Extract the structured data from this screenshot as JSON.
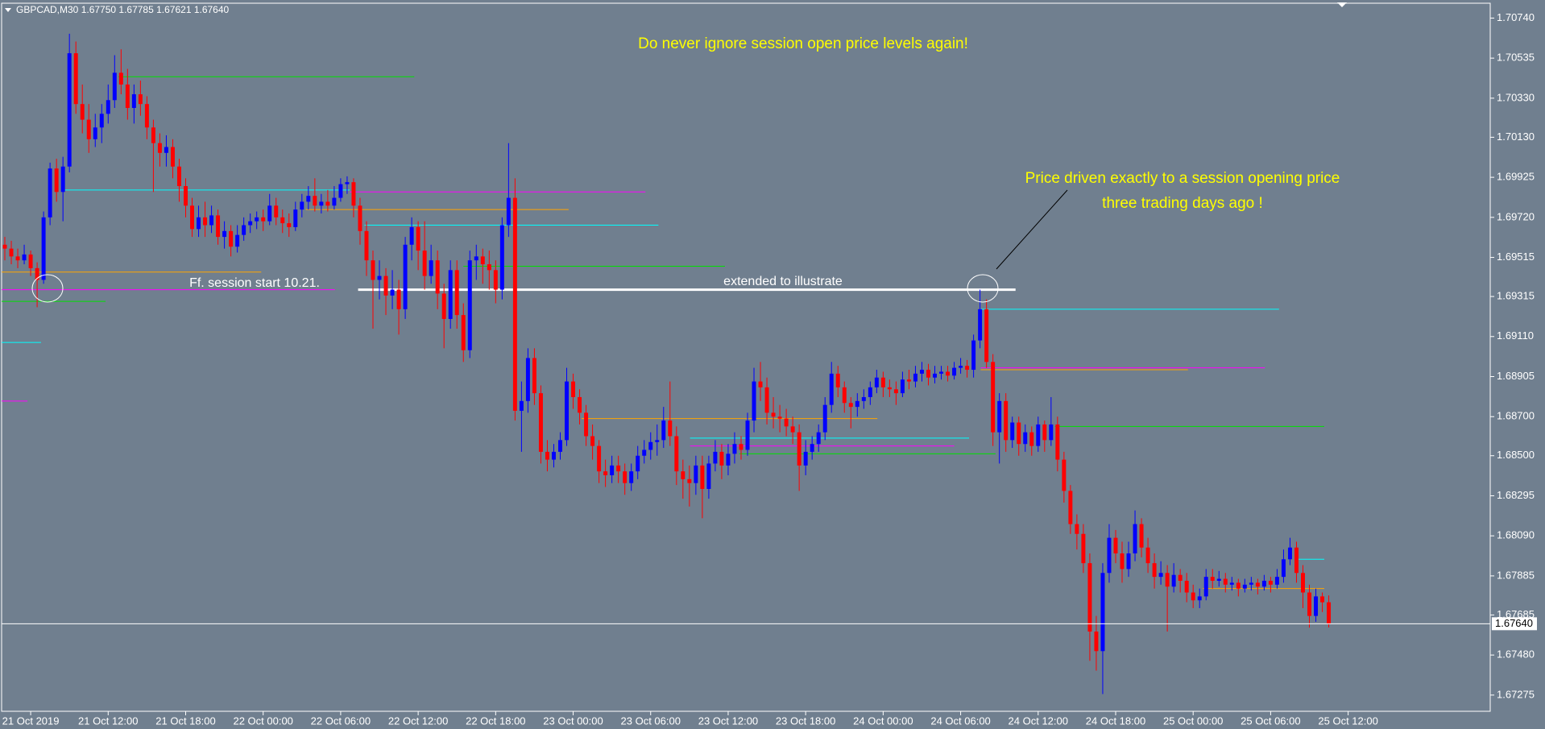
{
  "chart_data": {
    "type": "candlestick",
    "header": "GBPCAD,M30  1.67750 1.67785 1.67621 1.67640",
    "title": "Do never ignore session open price levels again!",
    "annotations": [
      "Price driven exactly to a session opening price",
      "three trading days ago !",
      "Ff. session start 10.21.",
      "extended to illustrate"
    ],
    "up_color": "#0000ff",
    "down_color": "#ff0000",
    "xlim": [
      -0.5,
      230
    ],
    "xticks": [
      {
        "value": 4,
        "label": "21 Oct 2019"
      },
      {
        "value": 16,
        "label": "21 Oct 12:00"
      },
      {
        "value": 28,
        "label": "21 Oct 18:00"
      },
      {
        "value": 40,
        "label": "22 Oct 00:00"
      },
      {
        "value": 52,
        "label": "22 Oct 06:00"
      },
      {
        "value": 64,
        "label": "22 Oct 12:00"
      },
      {
        "value": 76,
        "label": "22 Oct 18:00"
      },
      {
        "value": 88,
        "label": "23 Oct 00:00"
      },
      {
        "value": 100,
        "label": "23 Oct 06:00"
      },
      {
        "value": 112,
        "label": "23 Oct 12:00"
      },
      {
        "value": 124,
        "label": "23 Oct 18:00"
      },
      {
        "value": 136,
        "label": "24 Oct 00:00"
      },
      {
        "value": 148,
        "label": "24 Oct 06:00"
      },
      {
        "value": 160,
        "label": "24 Oct 12:00"
      },
      {
        "value": 172,
        "label": "24 Oct 18:00"
      },
      {
        "value": 184,
        "label": "25 Oct 00:00"
      },
      {
        "value": 196,
        "label": "25 Oct 06:00"
      },
      {
        "value": 208,
        "label": "25 Oct 12:00"
      }
    ],
    "ylim": [
      1.67192,
      1.70816
    ],
    "yticks": [
      {
        "value": 1.7074,
        "label": "1.70740"
      },
      {
        "value": 1.70535,
        "label": "1.70535"
      },
      {
        "value": 1.7033,
        "label": "1.70330"
      },
      {
        "value": 1.7013,
        "label": "1.70130"
      },
      {
        "value": 1.69925,
        "label": "1.69925"
      },
      {
        "value": 1.6972,
        "label": "1.69720"
      },
      {
        "value": 1.69515,
        "label": "1.69515"
      },
      {
        "value": 1.69315,
        "label": "1.69315"
      },
      {
        "value": 1.6911,
        "label": "1.69110"
      },
      {
        "value": 1.68905,
        "label": "1.68905"
      },
      {
        "value": 1.687,
        "label": "1.68700"
      },
      {
        "value": 1.685,
        "label": "1.68500"
      },
      {
        "value": 1.68295,
        "label": "1.68295"
      },
      {
        "value": 1.6809,
        "label": "1.68090"
      },
      {
        "value": 1.67885,
        "label": "1.67885"
      },
      {
        "value": 1.67685,
        "label": "1.67685"
      },
      {
        "value": 1.6748,
        "label": "1.67480"
      },
      {
        "value": 1.67275,
        "label": "1.67275"
      }
    ],
    "current_price": {
      "value": 1.6764,
      "label": "1.67640"
    },
    "open": [
      1.6958,
      1.6956,
      1.6952,
      1.695,
      1.6953,
      1.6946,
      1.694,
      1.6972,
      1.6997,
      1.6985,
      1.6998,
      1.7056,
      1.703,
      1.7022,
      1.7012,
      1.7018,
      1.7025,
      1.7032,
      1.7046,
      1.704,
      1.7028,
      1.7035,
      1.703,
      1.7018,
      1.701,
      1.7005,
      1.7008,
      1.6998,
      1.6988,
      1.6978,
      1.6966,
      1.6972,
      1.6968,
      1.6973,
      1.6962,
      1.6965,
      1.6957,
      1.6963,
      1.6968,
      1.697,
      1.6972,
      1.697,
      1.6978,
      1.6972,
      1.6969,
      1.6967,
      1.6976,
      1.698,
      1.6983,
      1.6978,
      1.698,
      1.6978,
      1.6982,
      1.6989,
      1.699,
      1.6978,
      1.6965,
      1.695,
      1.694,
      1.6942,
      1.6932,
      1.6935,
      1.6925,
      1.6958,
      1.6967,
      1.6955,
      1.6942,
      1.695,
      1.6933,
      1.692,
      1.6945,
      1.6922,
      1.6904,
      1.695,
      1.6952,
      1.6948,
      1.6945,
      1.6935,
      1.6968,
      1.6982,
      1.6873,
      1.6878,
      1.69,
      1.6882,
      1.6852,
      1.6848,
      1.6852,
      1.6858,
      1.6888,
      1.688,
      1.6872,
      1.686,
      1.6855,
      1.6842,
      1.684,
      1.6845,
      1.6842,
      1.6836,
      1.6842,
      1.685,
      1.6853,
      1.6857,
      1.6858,
      1.6868,
      1.686,
      1.6842,
      1.6838,
      1.6836,
      1.6845,
      1.6833,
      1.6846,
      1.6852,
      1.6845,
      1.6851,
      1.6856,
      1.6853,
      1.6868,
      1.6888,
      1.6885,
      1.6872,
      1.687,
      1.6869,
      1.6865,
      1.6862,
      1.6845,
      1.6852,
      1.6856,
      1.6862,
      1.6876,
      1.6892,
      1.6885,
      1.6877,
      1.6875,
      1.6878,
      1.688,
      1.6885,
      1.689,
      1.6885,
      1.6884,
      1.6882,
      1.6889,
      1.6888,
      1.6892,
      1.6894,
      1.689,
      1.6892,
      1.6893,
      1.6891,
      1.6895,
      1.6896,
      1.6894,
      1.6909,
      1.6925,
      1.6898,
      1.6862,
      1.6878,
      1.6858,
      1.6867,
      1.6856,
      1.6862,
      1.6855,
      1.6866,
      1.6858,
      1.6866,
      1.6848,
      1.6832,
      1.6815,
      1.681,
      1.6795,
      1.676,
      1.675,
      1.679,
      1.6808,
      1.68,
      1.6792,
      1.68,
      1.6815,
      1.6803,
      1.6795,
      1.6788,
      1.679,
      1.6783,
      1.6789,
      1.6786,
      1.678,
      1.6776,
      1.6778,
      1.6788,
      1.6786,
      1.6787,
      1.6784,
      1.6785,
      1.6782,
      1.6784,
      1.6785,
      1.6783,
      1.6786,
      1.6784,
      1.6788,
      1.6797,
      1.6803,
      1.679,
      1.678,
      1.6768,
      1.6778,
      1.6775
    ],
    "high": [
      1.6962,
      1.696,
      1.6956,
      1.6958,
      1.6955,
      1.6949,
      1.6975,
      1.7,
      1.7002,
      1.7003,
      1.7066,
      1.7062,
      1.704,
      1.703,
      1.7025,
      1.703,
      1.704,
      1.7055,
      1.7058,
      1.7048,
      1.704,
      1.7042,
      1.7034,
      1.7022,
      1.7015,
      1.7014,
      1.7012,
      1.7002,
      1.6992,
      1.6982,
      1.6978,
      1.698,
      1.6978,
      1.6976,
      1.697,
      1.6968,
      1.6968,
      1.6972,
      1.6974,
      1.6975,
      1.6976,
      1.6984,
      1.6982,
      1.6976,
      1.6974,
      1.698,
      1.6984,
      1.6988,
      1.6992,
      1.6984,
      1.6986,
      1.6988,
      1.6992,
      1.6993,
      1.6992,
      1.6982,
      1.697,
      1.6955,
      1.695,
      1.6946,
      1.6945,
      1.694,
      1.6962,
      1.6972,
      1.697,
      1.697,
      1.6958,
      1.6955,
      1.6938,
      1.695,
      1.695,
      1.6928,
      1.6955,
      1.6958,
      1.6956,
      1.6955,
      1.695,
      1.6972,
      1.701,
      1.6992,
      1.6888,
      1.6905,
      1.6905,
      1.6886,
      1.6858,
      1.6856,
      1.6862,
      1.6895,
      1.6892,
      1.6884,
      1.6876,
      1.6866,
      1.6858,
      1.6848,
      1.685,
      1.685,
      1.6846,
      1.6846,
      1.6855,
      1.6858,
      1.6862,
      1.6866,
      1.6875,
      1.6888,
      1.6865,
      1.6848,
      1.6845,
      1.685,
      1.685,
      1.685,
      1.6858,
      1.6856,
      1.6856,
      1.6862,
      1.686,
      1.6872,
      1.6895,
      1.6898,
      1.689,
      1.688,
      1.6876,
      1.6874,
      1.687,
      1.6866,
      1.6858,
      1.686,
      1.6866,
      1.688,
      1.6898,
      1.6896,
      1.6888,
      1.688,
      1.6882,
      1.6884,
      1.6888,
      1.6894,
      1.6893,
      1.6889,
      1.6888,
      1.6893,
      1.6894,
      1.6896,
      1.6898,
      1.6897,
      1.6896,
      1.6896,
      1.6896,
      1.6898,
      1.69,
      1.6899,
      1.6912,
      1.6935,
      1.693,
      1.6902,
      1.6882,
      1.6882,
      1.687,
      1.687,
      1.6866,
      1.6865,
      1.687,
      1.6868,
      1.688,
      1.687,
      1.6852,
      1.6835,
      1.682,
      1.6815,
      1.68,
      1.6768,
      1.6795,
      1.6815,
      1.6812,
      1.6806,
      1.6806,
      1.6822,
      1.6818,
      1.6808,
      1.68,
      1.6796,
      1.6794,
      1.6795,
      1.6792,
      1.679,
      1.6784,
      1.6782,
      1.6792,
      1.6792,
      1.6791,
      1.679,
      1.6788,
      1.6787,
      1.6787,
      1.6788,
      1.6787,
      1.6789,
      1.6788,
      1.6792,
      1.6802,
      1.6808,
      1.6806,
      1.6794,
      1.6784,
      1.6782,
      1.678,
      1.67785
    ],
    "low": [
      1.695,
      1.6948,
      1.6946,
      1.6948,
      1.6942,
      1.6926,
      1.6938,
      1.6968,
      1.698,
      1.697,
      1.6995,
      1.7025,
      1.7015,
      1.7005,
      1.7008,
      1.701,
      1.702,
      1.7028,
      1.7035,
      1.7022,
      1.702,
      1.7024,
      1.7012,
      1.6985,
      1.6998,
      1.6998,
      1.6992,
      1.698,
      1.6972,
      1.6962,
      1.6962,
      1.6962,
      1.6964,
      1.6958,
      1.6956,
      1.6952,
      1.6954,
      1.696,
      1.6964,
      1.6966,
      1.6965,
      1.6968,
      1.6968,
      1.6964,
      1.6962,
      1.6965,
      1.6972,
      1.6976,
      1.6975,
      1.6974,
      1.6975,
      1.6976,
      1.698,
      1.6984,
      1.6972,
      1.6958,
      1.6942,
      1.6915,
      1.693,
      1.6922,
      1.6925,
      1.6912,
      1.692,
      1.695,
      1.6945,
      1.6935,
      1.6938,
      1.6925,
      1.6905,
      1.6915,
      1.6915,
      1.6898,
      1.69,
      1.694,
      1.6938,
      1.6935,
      1.6928,
      1.693,
      1.6962,
      1.6868,
      1.6852,
      1.6872,
      1.6876,
      1.6846,
      1.6842,
      1.6844,
      1.6848,
      1.6855,
      1.6874,
      1.6866,
      1.6855,
      1.6848,
      1.6836,
      1.6834,
      1.6836,
      1.6836,
      1.683,
      1.6832,
      1.6838,
      1.6846,
      1.6848,
      1.685,
      1.6854,
      1.6855,
      1.6835,
      1.6828,
      1.6824,
      1.683,
      1.6818,
      1.6828,
      1.6842,
      1.6838,
      1.684,
      1.6846,
      1.6848,
      1.685,
      1.6862,
      1.6878,
      1.6866,
      1.6864,
      1.6862,
      1.686,
      1.6856,
      1.6832,
      1.684,
      1.6848,
      1.6852,
      1.6858,
      1.6872,
      1.688,
      1.6872,
      1.6864,
      1.687,
      1.6874,
      1.6876,
      1.6882,
      1.688,
      1.688,
      1.6876,
      1.688,
      1.6884,
      1.6885,
      1.6888,
      1.6886,
      1.6887,
      1.6889,
      1.6888,
      1.6889,
      1.6892,
      1.689,
      1.689,
      1.6905,
      1.6895,
      1.6855,
      1.6846,
      1.6852,
      1.6854,
      1.685,
      1.6852,
      1.685,
      1.6852,
      1.6852,
      1.6855,
      1.6842,
      1.6826,
      1.681,
      1.6802,
      1.679,
      1.6745,
      1.674,
      1.6728,
      1.6785,
      1.6795,
      1.6785,
      1.6788,
      1.6796,
      1.6798,
      1.679,
      1.6782,
      1.6784,
      1.676,
      1.678,
      1.678,
      1.6775,
      1.6772,
      1.6772,
      1.6776,
      1.6782,
      1.6783,
      1.678,
      1.6781,
      1.6778,
      1.678,
      1.6781,
      1.6779,
      1.6781,
      1.678,
      1.6782,
      1.6785,
      1.6794,
      1.6785,
      1.6772,
      1.6762,
      1.6765,
      1.677,
      1.67621
    ],
    "close": [
      1.6956,
      1.6952,
      1.695,
      1.6953,
      1.6946,
      1.694,
      1.6972,
      1.6997,
      1.6985,
      1.6998,
      1.7056,
      1.703,
      1.7022,
      1.7012,
      1.7018,
      1.7025,
      1.7032,
      1.7046,
      1.704,
      1.7028,
      1.7035,
      1.703,
      1.7018,
      1.701,
      1.7005,
      1.7008,
      1.6998,
      1.6988,
      1.6978,
      1.6966,
      1.6972,
      1.6968,
      1.6973,
      1.6962,
      1.6965,
      1.6957,
      1.6963,
      1.6968,
      1.697,
      1.6972,
      1.697,
      1.6978,
      1.6972,
      1.6969,
      1.6967,
      1.6976,
      1.698,
      1.6983,
      1.6978,
      1.698,
      1.6978,
      1.6982,
      1.6989,
      1.699,
      1.6978,
      1.6965,
      1.695,
      1.694,
      1.6942,
      1.6932,
      1.6935,
      1.6925,
      1.6958,
      1.6967,
      1.6955,
      1.6942,
      1.695,
      1.6933,
      1.692,
      1.6945,
      1.6922,
      1.6904,
      1.695,
      1.6952,
      1.6948,
      1.6945,
      1.6935,
      1.6968,
      1.6982,
      1.6873,
      1.6878,
      1.69,
      1.6882,
      1.6852,
      1.6848,
      1.6852,
      1.6858,
      1.6888,
      1.688,
      1.6872,
      1.686,
      1.6855,
      1.6842,
      1.684,
      1.6845,
      1.6842,
      1.6836,
      1.6842,
      1.685,
      1.6853,
      1.6857,
      1.6858,
      1.6868,
      1.686,
      1.6842,
      1.6838,
      1.6836,
      1.6845,
      1.6833,
      1.6846,
      1.6852,
      1.6845,
      1.6851,
      1.6856,
      1.6853,
      1.6868,
      1.6888,
      1.6885,
      1.6872,
      1.687,
      1.6869,
      1.6865,
      1.6862,
      1.6845,
      1.6852,
      1.6856,
      1.6862,
      1.6876,
      1.6892,
      1.6885,
      1.6877,
      1.6875,
      1.6878,
      1.688,
      1.6885,
      1.689,
      1.6885,
      1.6884,
      1.6882,
      1.6889,
      1.6888,
      1.6892,
      1.6894,
      1.689,
      1.6892,
      1.6893,
      1.6891,
      1.6895,
      1.6896,
      1.6894,
      1.6909,
      1.6925,
      1.6898,
      1.6862,
      1.6878,
      1.6858,
      1.6867,
      1.6856,
      1.6862,
      1.6855,
      1.6866,
      1.6858,
      1.6866,
      1.6848,
      1.6832,
      1.6815,
      1.681,
      1.6795,
      1.676,
      1.675,
      1.679,
      1.6808,
      1.68,
      1.6792,
      1.68,
      1.6815,
      1.6803,
      1.6795,
      1.6788,
      1.679,
      1.6783,
      1.6789,
      1.6786,
      1.678,
      1.6776,
      1.6778,
      1.6788,
      1.6786,
      1.6787,
      1.6784,
      1.6785,
      1.6782,
      1.6784,
      1.6785,
      1.6783,
      1.6786,
      1.6784,
      1.6788,
      1.6797,
      1.6803,
      1.679,
      1.678,
      1.6768,
      1.6778,
      1.6775,
      1.6764
    ],
    "levels": [
      {
        "price": 1.7044,
        "from": 17.6,
        "to": 63.4,
        "color": "#00e000"
      },
      {
        "price": 1.6986,
        "from": 9.2,
        "to": 53.4,
        "color": "#00ffff"
      },
      {
        "price": 1.6985,
        "from": 53.4,
        "to": 99.2,
        "color": "#ff00ff"
      },
      {
        "price": 1.6976,
        "from": 46.6,
        "to": 87.3,
        "color": "#ffa500"
      },
      {
        "price": 1.6968,
        "from": 55.7,
        "to": 101.2,
        "color": "#00ffff"
      },
      {
        "price": 1.6947,
        "from": 71,
        "to": 111.5,
        "color": "#00e000"
      },
      {
        "price": 1.6944,
        "from": -0.5,
        "to": 39.7,
        "color": "#ffa500"
      },
      {
        "price": 1.6935,
        "from": -0.5,
        "to": 51.1,
        "color": "#ff00ff"
      },
      {
        "price": 1.6929,
        "from": -0.5,
        "to": 15.6,
        "color": "#00e000"
      },
      {
        "price": 1.6908,
        "from": -0.5,
        "to": 5.6,
        "color": "#00ffff"
      },
      {
        "price": 1.6878,
        "from": -0.5,
        "to": 3.5,
        "color": "#ff00ff"
      },
      {
        "price": 1.6935,
        "from": 54.7,
        "to": 156.5,
        "color": "#ffffff",
        "width": 3
      },
      {
        "price": 1.6925,
        "from": 151.1,
        "to": 197.3,
        "color": "#00ffff"
      },
      {
        "price": 1.6895,
        "from": 151.1,
        "to": 195.1,
        "color": "#ff00ff"
      },
      {
        "price": 1.6894,
        "from": 151.1,
        "to": 183.2,
        "color": "#ffa500"
      },
      {
        "price": 1.6869,
        "from": 89.3,
        "to": 135.1,
        "color": "#ffa500"
      },
      {
        "price": 1.6859,
        "from": 106.1,
        "to": 149.3,
        "color": "#00ffff"
      },
      {
        "price": 1.6855,
        "from": 106.1,
        "to": 147,
        "color": "#ff00ff"
      },
      {
        "price": 1.6851,
        "from": 113.7,
        "to": 153.4,
        "color": "#00e000"
      },
      {
        "price": 1.6865,
        "from": 162.6,
        "to": 204.3,
        "color": "#00e000"
      },
      {
        "price": 1.6797,
        "from": 199.7,
        "to": 204.3,
        "color": "#00ffff"
      },
      {
        "price": 1.6782,
        "from": 185.5,
        "to": 204.3,
        "color": "#ffa500"
      }
    ]
  }
}
